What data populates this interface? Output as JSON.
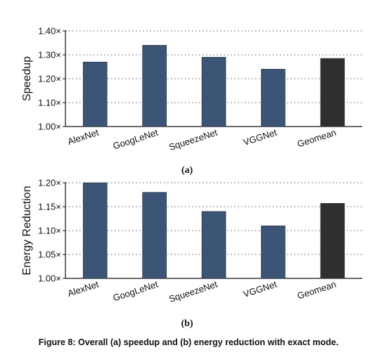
{
  "caption": "Figure 8: Overall (a) speedup and (b) energy reduction with exact mode.",
  "colors": {
    "bar": "#3c5475",
    "bar_mean": "#2f2f2f",
    "grid": "#555555"
  },
  "chart_data": [
    {
      "type": "bar",
      "sublabel": "(a)",
      "ylabel": "Speedup",
      "categories": [
        "AlexNet",
        "GoogLeNet",
        "SqueezeNet",
        "VGGNet",
        "Geomean"
      ],
      "values": [
        1.27,
        1.34,
        1.29,
        1.24,
        1.285
      ],
      "ylim": [
        1.0,
        1.4
      ],
      "yticks": [
        1.0,
        1.1,
        1.2,
        1.3,
        1.4
      ],
      "ytick_labels": [
        "1.00×",
        "1.10×",
        "1.20×",
        "1.30×",
        "1.40×"
      ],
      "grid": true
    },
    {
      "type": "bar",
      "sublabel": "(b)",
      "ylabel": "Energy Reduction",
      "categories": [
        "AlexNet",
        "GoogLeNet",
        "SqueezeNet",
        "VGGNet",
        "Geomean"
      ],
      "values": [
        1.2,
        1.18,
        1.14,
        1.11,
        1.157
      ],
      "ylim": [
        1.0,
        1.2
      ],
      "yticks": [
        1.0,
        1.05,
        1.1,
        1.15,
        1.2
      ],
      "ytick_labels": [
        "1.00×",
        "1.05×",
        "1.10×",
        "1.15×",
        "1.20×"
      ],
      "grid": true
    }
  ]
}
